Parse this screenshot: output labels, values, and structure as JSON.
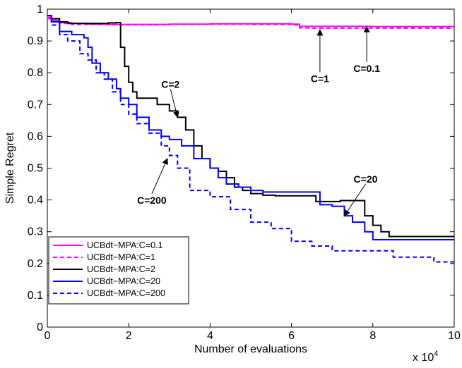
{
  "chart_data": {
    "type": "line",
    "title": "",
    "xlabel": "Number of evaluations",
    "ylabel": "Simple Regret",
    "x_multiplier_label": "x 10",
    "x_multiplier_exp": "4",
    "xlim": [
      0,
      10
    ],
    "ylim": [
      0,
      1
    ],
    "xticks": [
      "0",
      "2",
      "4",
      "6",
      "8",
      "10"
    ],
    "yticks": [
      "0",
      "0.1",
      "0.2",
      "0.3",
      "0.4",
      "0.5",
      "0.6",
      "0.7",
      "0.8",
      "0.9",
      "1"
    ],
    "grid": false,
    "legend_position": "bottom-left",
    "series": [
      {
        "name": "UCBdt−MPA:C=0.1",
        "color": "#ff00ff",
        "dash": "solid",
        "x": [
          0,
          0.1,
          0.3,
          0.6,
          1.0,
          1.5,
          2.0,
          3.0,
          4.0,
          5.0,
          6.0,
          6.2,
          6.5,
          7.0,
          7.8,
          8.0,
          8.5,
          9.0,
          10.0
        ],
        "y": [
          0.975,
          0.965,
          0.958,
          0.955,
          0.953,
          0.952,
          0.952,
          0.953,
          0.954,
          0.954,
          0.953,
          0.946,
          0.946,
          0.946,
          0.946,
          0.945,
          0.945,
          0.945,
          0.945
        ]
      },
      {
        "name": "UCBdt−MPA:C=1",
        "color": "#ff00ff",
        "dash": "dashed",
        "x": [
          0,
          0.1,
          0.3,
          0.6,
          1.0,
          1.5,
          2.0,
          3.0,
          4.0,
          5.0,
          6.0,
          6.2,
          6.5,
          7.0,
          8.0,
          8.5,
          9.0,
          10.0
        ],
        "y": [
          0.97,
          0.962,
          0.955,
          0.952,
          0.952,
          0.951,
          0.951,
          0.952,
          0.953,
          0.952,
          0.95,
          0.941,
          0.94,
          0.94,
          0.94,
          0.94,
          0.94,
          0.94
        ]
      },
      {
        "name": "UCBdt−MPA:C=2",
        "color": "#000000",
        "dash": "solid",
        "x": [
          0,
          0.1,
          0.3,
          0.5,
          1.0,
          1.5,
          1.7,
          1.8,
          1.9,
          2.0,
          2.1,
          2.2,
          2.4,
          2.7,
          3.0,
          3.2,
          3.4,
          3.6,
          3.8,
          4.0,
          4.2,
          4.4,
          4.6,
          4.8,
          5.0,
          5.3,
          5.6,
          6.0,
          6.6,
          6.9,
          7.2,
          7.7,
          7.8,
          8.0,
          8.2,
          8.4,
          10.0
        ],
        "y": [
          0.98,
          0.97,
          0.96,
          0.955,
          0.955,
          0.957,
          0.958,
          0.88,
          0.82,
          0.77,
          0.74,
          0.72,
          0.72,
          0.7,
          0.68,
          0.66,
          0.62,
          0.57,
          0.53,
          0.5,
          0.49,
          0.47,
          0.44,
          0.43,
          0.42,
          0.415,
          0.413,
          0.413,
          0.395,
          0.395,
          0.398,
          0.398,
          0.35,
          0.32,
          0.3,
          0.285,
          0.285
        ]
      },
      {
        "name": "UCBdt−MPA:C=20",
        "color": "#0000ff",
        "dash": "solid",
        "x": [
          0,
          0.1,
          0.3,
          0.6,
          0.9,
          1.0,
          1.1,
          1.3,
          1.5,
          1.7,
          1.8,
          2.0,
          2.2,
          2.5,
          2.8,
          3.0,
          3.3,
          3.6,
          4.0,
          4.2,
          4.4,
          4.7,
          5.0,
          5.3,
          5.7,
          6.0,
          6.5,
          6.7,
          7.0,
          7.3,
          7.5,
          7.8,
          8.0,
          10.0
        ],
        "y": [
          0.98,
          0.96,
          0.93,
          0.92,
          0.91,
          0.88,
          0.83,
          0.8,
          0.78,
          0.75,
          0.72,
          0.7,
          0.66,
          0.62,
          0.6,
          0.59,
          0.57,
          0.53,
          0.5,
          0.47,
          0.45,
          0.44,
          0.43,
          0.425,
          0.425,
          0.425,
          0.425,
          0.385,
          0.38,
          0.35,
          0.33,
          0.3,
          0.275,
          0.275
        ]
      },
      {
        "name": "UCBdt−MPA:C=200",
        "color": "#0000ff",
        "dash": "dashed",
        "x": [
          0,
          0.1,
          0.3,
          0.5,
          0.8,
          1.0,
          1.2,
          1.4,
          1.6,
          1.8,
          2.0,
          2.2,
          2.5,
          2.8,
          3.0,
          3.2,
          3.5,
          4.0,
          4.5,
          5.0,
          5.5,
          6.0,
          6.5,
          7.0,
          7.5,
          8.0,
          8.5,
          9.0,
          9.5,
          10.0
        ],
        "y": [
          0.98,
          0.95,
          0.92,
          0.9,
          0.86,
          0.84,
          0.8,
          0.78,
          0.74,
          0.7,
          0.67,
          0.64,
          0.61,
          0.57,
          0.54,
          0.5,
          0.43,
          0.41,
          0.37,
          0.33,
          0.31,
          0.27,
          0.255,
          0.24,
          0.24,
          0.24,
          0.22,
          0.22,
          0.205,
          0.205
        ]
      }
    ],
    "annotations": [
      {
        "text": "C=1",
        "point": [
          6.7,
          0.935
        ]
      },
      {
        "text": "C=0.1",
        "point": [
          7.85,
          0.945
        ]
      },
      {
        "text": "C=2",
        "point": [
          3.2,
          0.66
        ]
      },
      {
        "text": "C=200",
        "point": [
          2.95,
          0.53
        ]
      },
      {
        "text": "C=20",
        "point": [
          7.3,
          0.35
        ]
      }
    ]
  }
}
